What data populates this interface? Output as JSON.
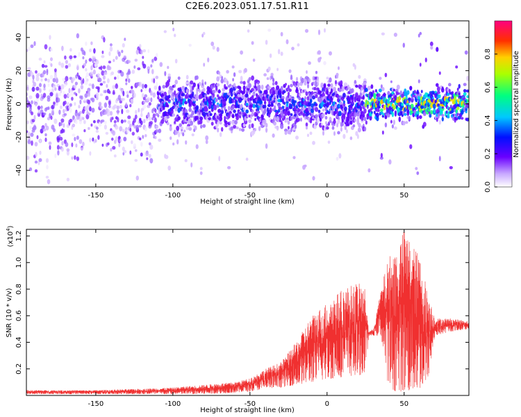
{
  "title": "C2E6.2023.051.17.51.R11",
  "colors": {
    "snr_line": "#f03030",
    "axes": "#000000",
    "spectrogram_low": "#e6d8ff",
    "spectrogram_mid": "#6a00ff",
    "spectrogram_high": "#00e5ff"
  },
  "chart_data": [
    {
      "type": "heatmap",
      "title": "C2E6.2023.051.17.51.R11",
      "xlabel": "Height of straight line (km)",
      "ylabel": "Frequency (Hz)",
      "xlim": [
        -195,
        92
      ],
      "ylim": [
        -50,
        50
      ],
      "x_ticks": [
        -150,
        -100,
        -50,
        0,
        50
      ],
      "y_ticks": [
        -40,
        -20,
        0,
        20,
        40
      ],
      "colorbar": {
        "label": "Normalized spectral amplitude",
        "range": [
          0.0,
          1.0
        ],
        "ticks": [
          0.0,
          0.2,
          0.4,
          0.6,
          0.8
        ],
        "colormap": [
          "#ffffff",
          "#8a2be2",
          "#0000ff",
          "#00c8ff",
          "#00ff80",
          "#80ff00",
          "#ffff00",
          "#ff8000",
          "#ff0000",
          "#ff0080"
        ]
      },
      "description_bands": [
        {
          "x_range": [
            -195,
            -110
          ],
          "freq_spread": 50,
          "amplitude": 0.15
        },
        {
          "x_range": [
            -110,
            25
          ],
          "freq_spread": 25,
          "amplitude": 0.35
        },
        {
          "x_range": [
            25,
            92
          ],
          "freq_spread": 15,
          "amplitude": 0.6
        }
      ]
    },
    {
      "type": "line",
      "xlabel": "Height of straight line (km)",
      "ylabel": "SNR (10 * v/v)",
      "y_multiplier": "(x10",
      "y_multiplier_exp": "4",
      "y_multiplier_close": ")",
      "xlim": [
        -195,
        92
      ],
      "ylim": [
        0,
        1.25
      ],
      "x_ticks": [
        -150,
        -100,
        -50,
        0,
        50
      ],
      "y_ticks": [
        0.2,
        0.4,
        0.6,
        0.8,
        1.0,
        1.2
      ],
      "envelope": {
        "x": [
          -195,
          -150,
          -120,
          -100,
          -80,
          -60,
          -50,
          -40,
          -30,
          -20,
          -10,
          0,
          10,
          20,
          25,
          27,
          30,
          35,
          40,
          45,
          50,
          55,
          60,
          65,
          70,
          80,
          92
        ],
        "lower": [
          0.01,
          0.01,
          0.01,
          0.01,
          0.01,
          0.02,
          0.03,
          0.05,
          0.06,
          0.08,
          0.1,
          0.12,
          0.14,
          0.15,
          0.16,
          0.45,
          0.45,
          0.45,
          0.05,
          0.03,
          0.03,
          0.03,
          0.05,
          0.08,
          0.45,
          0.48,
          0.5
        ],
        "upper": [
          0.04,
          0.04,
          0.05,
          0.06,
          0.08,
          0.1,
          0.13,
          0.2,
          0.25,
          0.4,
          0.6,
          0.7,
          0.8,
          0.85,
          0.8,
          0.48,
          0.5,
          0.8,
          1.05,
          1.1,
          1.25,
          1.15,
          1.05,
          0.8,
          0.58,
          0.58,
          0.56
        ]
      }
    }
  ]
}
